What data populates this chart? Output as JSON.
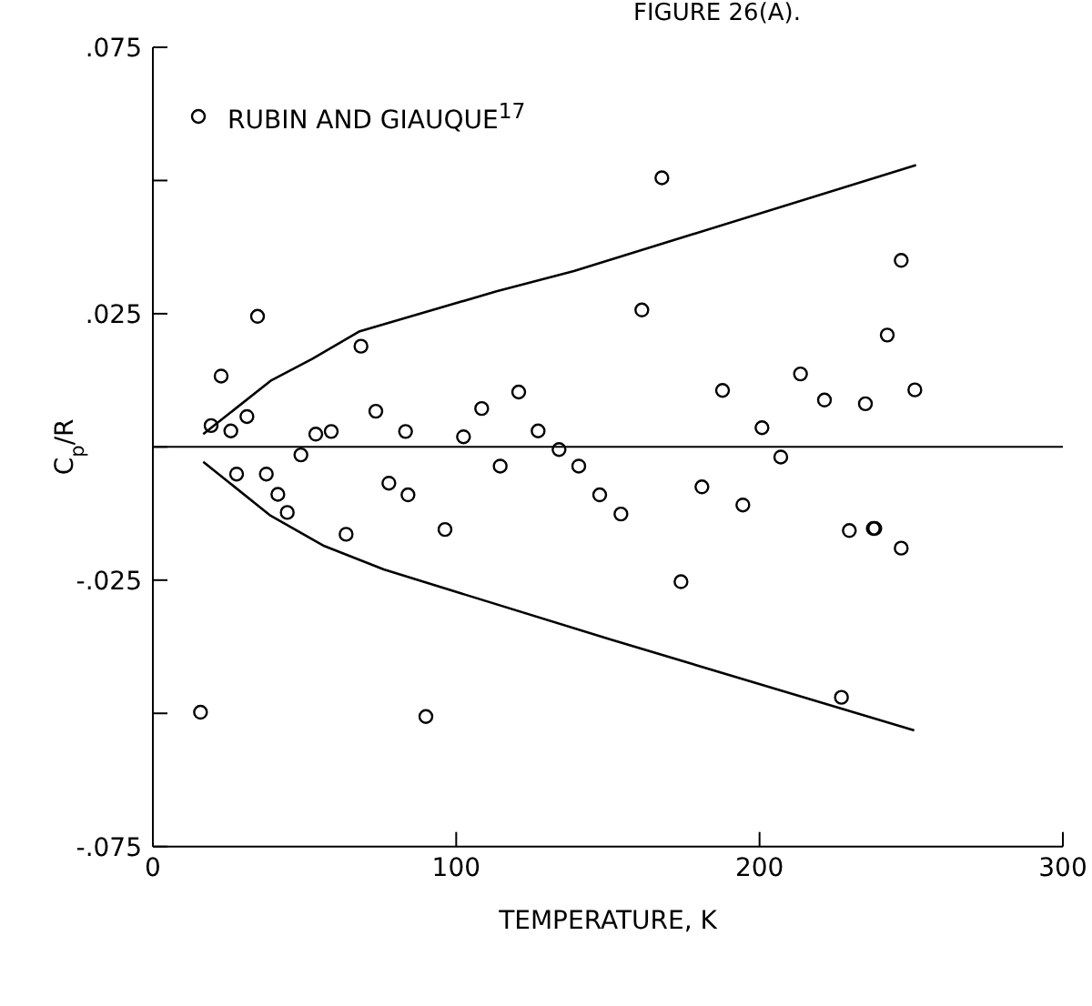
{
  "chart_data": {
    "type": "scatter",
    "title": "FIGURE 26(A).",
    "xlabel": "TEMPERATURE, K",
    "ylabel": "C$_{p}$/R",
    "xlim": [
      0,
      300
    ],
    "xticks": [
      0,
      100,
      200,
      300
    ],
    "ylim": [
      -0.075,
      0.075
    ],
    "yticks": [
      {
        "value": -0.075,
        "label": "-.075"
      },
      {
        "value": -0.05,
        "label": null
      },
      {
        "value": -0.025,
        "label": "-.025"
      },
      {
        "value": 0,
        "label": null
      },
      {
        "value": 0.025,
        "label": ".025"
      },
      {
        "value": 0.05,
        "label": null
      },
      {
        "value": 0.075,
        "label": ".075"
      }
    ],
    "grid": false,
    "legend": "top left",
    "ref_lines": [
      {
        "axis": "y",
        "value": 0,
        "color": "#000000"
      }
    ],
    "series": [
      {
        "name": "RUBIN AND GIAUQUE$^{17}$",
        "marker": "circle",
        "color": "#000000",
        "x": [
          19.2,
          22.5,
          25.7,
          31,
          34.5,
          68.6,
          53.7,
          58.8,
          73.5,
          83.3,
          102.4,
          108.4,
          120.6,
          127,
          133.9,
          48.8,
          114.5,
          140.4,
          27.6,
          37.4,
          41.2,
          44.3,
          63.7,
          77.8,
          84.1,
          96.3,
          147.3,
          15.7,
          90,
          167.8,
          161.2,
          246.7,
          242.1,
          213.5,
          187.8,
          251.2,
          221.4,
          234.9,
          200.8,
          207,
          154.3,
          181,
          194.5,
          174.1,
          229.6,
          237.5,
          238,
          246.7,
          227
        ],
        "values": [
          0.004,
          0.0133,
          0.003,
          0.0057,
          0.0245,
          0.0189,
          0.0024,
          0.0029,
          0.0067,
          0.0029,
          0.0019,
          0.0072,
          0.0103,
          0.003,
          -0.0005,
          -0.0015,
          -0.0036,
          -0.0036,
          -0.0051,
          -0.0051,
          -0.0089,
          -0.0123,
          -0.0164,
          -0.0068,
          -0.009,
          -0.0155,
          -0.009,
          -0.0498,
          -0.0506,
          0.0505,
          0.0257,
          0.035,
          0.021,
          0.0137,
          0.0106,
          0.0107,
          0.0088,
          0.0081,
          0.0036,
          -0.0019,
          -0.0126,
          -0.0075,
          -0.0109,
          -0.0253,
          -0.0157,
          -0.0153,
          -0.0153,
          -0.019,
          -0.047
        ]
      },
      {
        "type": "line",
        "marker": "none",
        "color": "#000000",
        "x": [
          16.6,
          38.8,
          52.5,
          68.2,
          113.3,
          138.8,
          251.6
        ],
        "values": [
          0.0024,
          0.0124,
          0.0165,
          0.0217,
          0.0292,
          0.033,
          0.0529
        ]
      },
      {
        "type": "line",
        "marker": "none",
        "color": "#000000",
        "x": [
          16.6,
          38.8,
          56.5,
          76.1,
          150.6,
          251
        ],
        "values": [
          -0.0028,
          -0.0129,
          -0.0186,
          -0.023,
          -0.0361,
          -0.0532
        ]
      }
    ]
  }
}
